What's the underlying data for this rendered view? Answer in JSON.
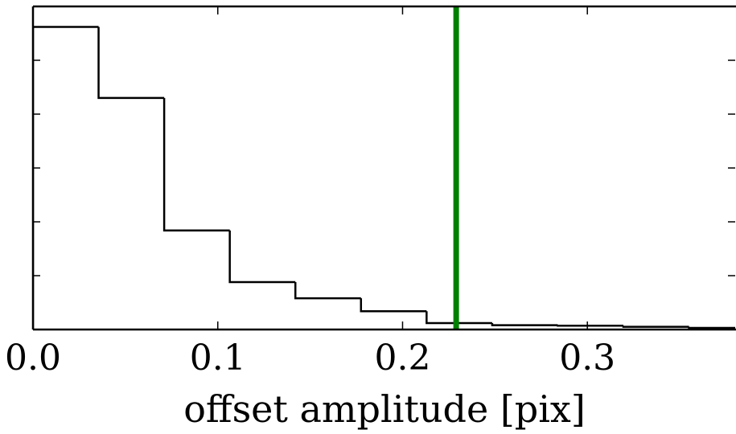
{
  "chart_data": {
    "type": "histogram",
    "title": "",
    "xlabel": "offset amplitude [pix]",
    "ylabel": "",
    "xlim": [
      0.0,
      0.38
    ],
    "ylim": [
      0,
      6
    ],
    "x_ticks": [
      0.0,
      0.1,
      0.2,
      0.3
    ],
    "x_tick_labels": [
      "0.0",
      "0.1",
      "0.2",
      "0.3"
    ],
    "y_ticks": [
      1,
      2,
      3,
      4,
      5
    ],
    "y_tick_labels": [],
    "grid": false,
    "bin_edges": [
      0.0,
      0.0355,
      0.071,
      0.1065,
      0.142,
      0.1775,
      0.213,
      0.2485,
      0.284,
      0.3195,
      0.355,
      0.39
    ],
    "values": [
      5.62,
      4.3,
      1.84,
      0.88,
      0.58,
      0.34,
      0.12,
      0.08,
      0.07,
      0.05,
      0.03
    ],
    "line_color": "#000000",
    "reference_line": {
      "x": 0.229,
      "color": "#008000"
    }
  }
}
